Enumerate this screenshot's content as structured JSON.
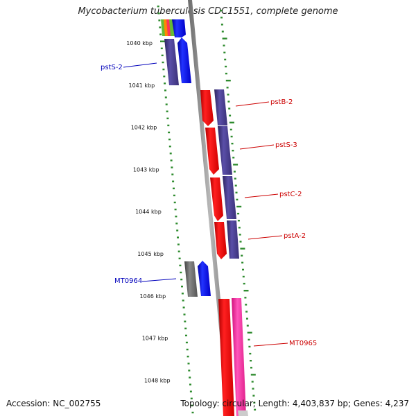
{
  "title": "Mycobacterium tuberculosis CDC1551, complete genome",
  "footer": {
    "accession": "Accession: NC_002755",
    "summary": "Topology: circular; Length: 4,403,837 bp; Genes: 4,237"
  },
  "colors": {
    "tick": "#2e8b2e",
    "backbone": "#8f8f8f",
    "forward_gene": "#0000ee",
    "reverse_gene": "#ee0000",
    "cds_purple": "#4a3f8c",
    "pseudo_gray": "#666666",
    "pink": "#ff33aa",
    "label_blue": "#0000bb",
    "label_red": "#cc0000"
  },
  "scale_labels": [
    "1040 kbp",
    "1041 kbp",
    "1042 kbp",
    "1043 kbp",
    "1044 kbp",
    "1045 kbp",
    "1046 kbp",
    "1047 kbp",
    "1048 kbp"
  ],
  "gene_labels": [
    {
      "id": "pstS-2",
      "text": "pstS-2",
      "strand": "forward"
    },
    {
      "id": "pstB-2",
      "text": "pstB-2",
      "strand": "reverse"
    },
    {
      "id": "pstS-3",
      "text": "pstS-3",
      "strand": "reverse"
    },
    {
      "id": "pstC-2",
      "text": "pstC-2",
      "strand": "reverse"
    },
    {
      "id": "pstA-2",
      "text": "pstA-2",
      "strand": "reverse"
    },
    {
      "id": "MT0964",
      "text": "MT0964",
      "strand": "forward"
    },
    {
      "id": "MT0965",
      "text": "MT0965",
      "strand": "reverse"
    }
  ]
}
